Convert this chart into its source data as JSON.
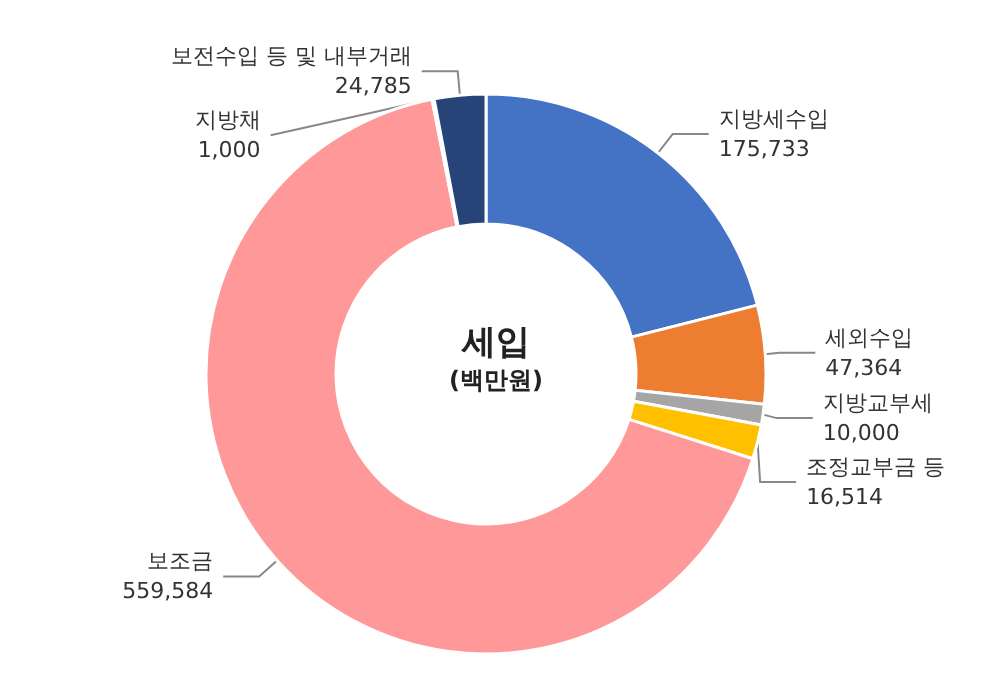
{
  "chart_data": {
    "type": "donut",
    "title": "세입",
    "subtitle": "(백만원)",
    "categories": [
      "지방세수입",
      "세외수입",
      "지방교부세",
      "조정교부금 등",
      "보조금",
      "지방채",
      "보전수입 등 및 내부거래"
    ],
    "values": [
      175733,
      47364,
      10000,
      16514,
      559584,
      1000,
      24785
    ],
    "colors": [
      "#4472c4",
      "#ed7d31",
      "#a5a5a5",
      "#ffc000",
      "#ff9999",
      "#70ad47",
      "#264478"
    ],
    "value_labels": [
      "175,733",
      "47,364",
      "10,000",
      "16,514",
      "559,584",
      "1,000",
      "24,785"
    ],
    "legend": false
  }
}
